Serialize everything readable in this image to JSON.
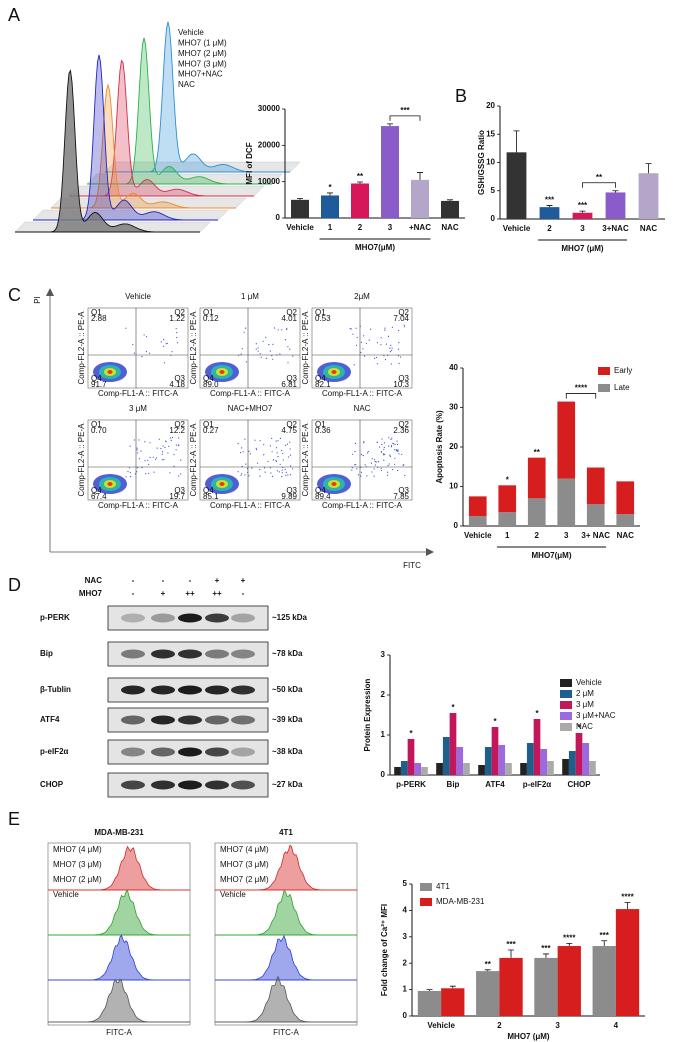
{
  "figure": {
    "panel_labels": [
      "A",
      "B",
      "C",
      "D",
      "E"
    ],
    "dcf_histogram": {
      "legend": [
        {
          "name": "Vehicle",
          "color": "#111111"
        },
        {
          "name": "MHO7 (1 μM)",
          "color": "#2323c2"
        },
        {
          "name": "MHO7 (2 μM)",
          "color": "#f08a2c"
        },
        {
          "name": "MHO7 (3 μM)",
          "color": "#d62a4a"
        },
        {
          "name": "MHO7+NAC",
          "color": "#27b34a"
        },
        {
          "name": "NAC",
          "color": "#2a8fd6"
        }
      ]
    },
    "flow_cytometry": {
      "y_axis": "PI",
      "x_axis": "FITC",
      "plot_y_label": "Comp-FL2-A :: PE-A",
      "plot_x_label": "Comp-FL1-A :: FITC-A",
      "quadrants": [
        "Q1",
        "Q2",
        "Q3",
        "Q4"
      ],
      "plots": [
        {
          "title": "Vehicle",
          "q1": "2.88",
          "q2": "1.22",
          "q3": "4.18",
          "q4": "91.7"
        },
        {
          "title": "1 μM",
          "q1": "0.12",
          "q2": "4.01",
          "q3": "6.81",
          "q4": "89.0"
        },
        {
          "title": "2μM",
          "q1": "0.53",
          "q2": "7.04",
          "q3": "10.3",
          "q4": "82.1"
        },
        {
          "title": "3 μM",
          "q1": "0.70",
          "q2": "12.2",
          "q3": "19.7",
          "q4": "67.4"
        },
        {
          "title": "NAC+MHO7",
          "q1": "0.27",
          "q2": "4.75",
          "q3": "9.89",
          "q4": "85.1"
        },
        {
          "title": "NAC",
          "q1": "0.36",
          "q2": "2.36",
          "q3": "7.85",
          "q4": "89.4"
        }
      ]
    },
    "western_blot": {
      "treatments": [
        {
          "name": "NAC",
          "marks": [
            "-",
            "-",
            "-",
            "+",
            "+"
          ]
        },
        {
          "name": "MHO7",
          "marks": [
            "-",
            "+",
            "++",
            "++",
            "-"
          ]
        }
      ],
      "proteins": [
        {
          "name": "p-PERK",
          "size": "~125 kDa"
        },
        {
          "name": "Bip",
          "size": "~78 kDa"
        },
        {
          "name": "β-Tublin",
          "size": "~50 kDa"
        },
        {
          "name": "ATF4",
          "size": "~39 kDa"
        },
        {
          "name": "p-eIF2α",
          "size": "~38 kDa"
        },
        {
          "name": "CHOP",
          "size": "~27 kDa"
        }
      ]
    },
    "calcium_histograms": {
      "x_label": "FITC-A",
      "panels": [
        {
          "title": "MDA-MB-231"
        },
        {
          "title": "4T1"
        }
      ],
      "legend": [
        {
          "name": "MHO7 (4 μM)",
          "color": "#d62728"
        },
        {
          "name": "MHO7 (3 μM)",
          "color": "#2ca02c"
        },
        {
          "name": "MHO7 (2 μM)",
          "color": "#2b3fd6"
        },
        {
          "name": "Vehicle",
          "color": "#555555"
        }
      ]
    }
  },
  "chart_data": [
    {
      "type": "bar",
      "y_label": "MFI of DCF",
      "x_label": "MHO7(μM)",
      "categories": [
        "Vehicle",
        "1",
        "2",
        "3",
        "+NAC",
        "NAC"
      ],
      "values": [
        5000,
        6200,
        9500,
        25300,
        10500,
        4700
      ],
      "errors": [
        400,
        700,
        400,
        600,
        2000,
        300
      ],
      "colors": [
        "#333333",
        "#1f5a9a",
        "#d6185a",
        "#8a5cc9",
        "#b4a6c8",
        "#333333"
      ],
      "significance": [
        null,
        "*",
        "**",
        null,
        null,
        null
      ],
      "bracket": {
        "label": "***",
        "between": [
          "3",
          "+NAC"
        ]
      },
      "ylim": [
        0,
        30000
      ],
      "yticks": [
        0,
        10000,
        20000,
        30000
      ]
    },
    {
      "type": "bar",
      "y_label": "GSH/GSSG Ratio",
      "x_label": "MHO7 (μM)",
      "categories": [
        "Vehicle",
        "2",
        "3",
        "3+NAC",
        "NAC"
      ],
      "values": [
        11.8,
        2.1,
        1.1,
        4.7,
        8.1
      ],
      "errors": [
        3.8,
        0.3,
        0.3,
        0.3,
        1.7
      ],
      "colors": [
        "#333333",
        "#1f5a9a",
        "#d6185a",
        "#8a5cc9",
        "#b4a6c8"
      ],
      "significance": [
        null,
        "***",
        "***",
        null,
        null
      ],
      "bracket": {
        "label": "**",
        "between": [
          "3",
          "3+NAC"
        ]
      },
      "ylim": [
        0,
        20
      ],
      "yticks": [
        0,
        5,
        10,
        15,
        20
      ]
    },
    {
      "type": "bar",
      "stacked": true,
      "y_label": "Apoptosis Rate (%)",
      "x_label": "MHO7(μM)",
      "categories": [
        "Vehicle",
        "1",
        "2",
        "3",
        "3+ NAC",
        "NAC"
      ],
      "series": [
        {
          "name": "Early",
          "color": "#d71e1e",
          "values": [
            5,
            6.8,
            10.3,
            19.5,
            9.3,
            8.3
          ],
          "significance": [
            null,
            "*",
            "**",
            null,
            null,
            null
          ]
        },
        {
          "name": "Late",
          "color": "#8c8c8c",
          "values": [
            2.5,
            3.5,
            7,
            12,
            5.5,
            3
          ]
        }
      ],
      "bracket": {
        "label": "****",
        "between": [
          "3",
          "3+ NAC"
        ]
      },
      "ylim": [
        0,
        40
      ],
      "yticks": [
        0,
        10,
        20,
        30,
        40
      ]
    },
    {
      "type": "bar",
      "y_label": "Protein Expression",
      "categories": [
        "p-PERK",
        "Bip",
        "ATF4",
        "p-eIF2α",
        "CHOP"
      ],
      "series": [
        {
          "name": "Vehicle",
          "color": "#222222",
          "values": [
            0.2,
            0.3,
            0.25,
            0.3,
            0.4
          ]
        },
        {
          "name": "2 μM",
          "color": "#1f5f8b",
          "values": [
            0.35,
            0.95,
            0.7,
            0.8,
            0.6
          ]
        },
        {
          "name": "3 μM",
          "color": "#c2185b",
          "values": [
            0.9,
            1.55,
            1.2,
            1.4,
            1.05
          ],
          "significance": [
            "*",
            "*",
            "*",
            "*",
            "*"
          ]
        },
        {
          "name": "3 μM+NAC",
          "color": "#9c6ade",
          "values": [
            0.3,
            0.7,
            0.75,
            0.65,
            0.8
          ]
        },
        {
          "name": "NAC",
          "color": "#aaaaaa",
          "values": [
            0.2,
            0.3,
            0.3,
            0.35,
            0.35
          ]
        }
      ],
      "ylim": [
        0,
        3
      ],
      "yticks": [
        0,
        1,
        2,
        3
      ]
    },
    {
      "type": "bar",
      "y_label": "Fold change of Ca²⁺ MFI",
      "x_label": "MHO7 (μM)",
      "categories": [
        "Vehicle",
        "2",
        "3",
        "4"
      ],
      "series": [
        {
          "name": "4T1",
          "color": "#8c8c8c",
          "values": [
            0.95,
            1.7,
            2.2,
            2.65
          ],
          "errors": [
            0.05,
            0.05,
            0.15,
            0.2
          ],
          "significance": [
            null,
            "**",
            "***",
            "***"
          ]
        },
        {
          "name": "MDA-MB-231",
          "color": "#d71e1e",
          "values": [
            1.05,
            2.2,
            2.65,
            4.05
          ],
          "errors": [
            0.08,
            0.3,
            0.1,
            0.25
          ],
          "significance": [
            null,
            "***",
            "****",
            "****"
          ]
        }
      ],
      "ylim": [
        0,
        5
      ],
      "yticks": [
        0,
        1,
        2,
        3,
        4,
        5
      ]
    }
  ]
}
